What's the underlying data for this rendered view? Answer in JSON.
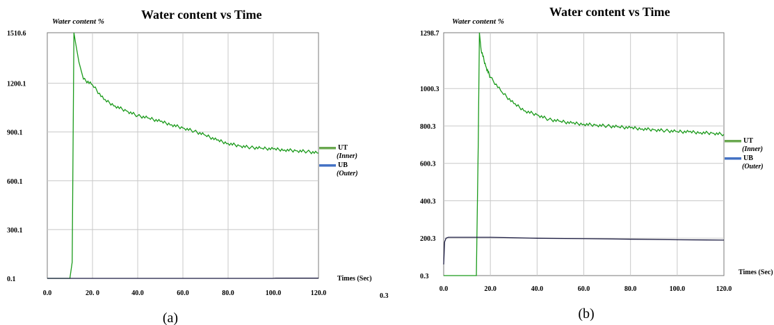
{
  "chart_data": [
    {
      "type": "line",
      "caption": "(a)",
      "title": "Water content vs Time",
      "ylabel": "Water content %",
      "xlabel": "Times (Sec)",
      "xlim": [
        0,
        120
      ],
      "ylim": [
        0.1,
        1510.6
      ],
      "x_ticks": [
        "0.0",
        "20. 0",
        "40.0",
        "60.0",
        "80.0",
        "100.0",
        "120.0"
      ],
      "x_tick_values": [
        0,
        20,
        40,
        60,
        80,
        100,
        120
      ],
      "y_ticks": [
        "0.1",
        "300.1",
        "600.1",
        "900.1",
        "1200.1",
        "1510.6"
      ],
      "y_tick_values": [
        0.1,
        300.1,
        600.1,
        900.1,
        1200.1,
        1510.6
      ],
      "extra_label": "0.3",
      "grid": true,
      "legend_position": "right",
      "legend": [
        {
          "name": "UT",
          "sub": "(Inner)",
          "color": "#6aa84f"
        },
        {
          "name": "UB",
          "sub": "(Outer)",
          "color": "#4472c4"
        }
      ],
      "series": [
        {
          "name": "UT",
          "color": "#1a9a1a",
          "x": [
            0,
            10,
            11,
            11.8,
            12.5,
            14,
            16,
            20,
            25,
            30,
            35,
            40,
            45,
            50,
            55,
            60,
            65,
            70,
            75,
            80,
            85,
            90,
            95,
            100,
            105,
            110,
            115,
            120
          ],
          "y": [
            0.1,
            0.1,
            100,
            1510.6,
            1450,
            1330,
            1225,
            1190,
            1100,
            1060,
            1030,
            1000,
            985,
            965,
            945,
            925,
            905,
            880,
            850,
            830,
            815,
            805,
            800,
            795,
            790,
            785,
            780,
            770
          ]
        },
        {
          "name": "UB",
          "color": "#1a1a40",
          "x": [
            0,
            100,
            101,
            120
          ],
          "y": [
            0.1,
            0.1,
            2,
            2
          ]
        }
      ]
    },
    {
      "type": "line",
      "caption": "(b)",
      "title": "Water content vs Time",
      "ylabel": "Water content %",
      "xlabel": "Times (Sec)",
      "xlim": [
        0,
        120
      ],
      "ylim": [
        0.3,
        1298.7
      ],
      "x_ticks": [
        "0.0",
        "20.0",
        "40.0",
        "60.0",
        "80.0",
        "100.0",
        "120.0"
      ],
      "x_tick_values": [
        0,
        20,
        40,
        60,
        80,
        100,
        120
      ],
      "y_ticks": [
        "0.3",
        "200.3",
        "400.3",
        "600.3",
        "800.3",
        "1000.3",
        "1298.7"
      ],
      "y_tick_values": [
        0.3,
        200.3,
        400.3,
        600.3,
        800.3,
        1000.3,
        1298.7
      ],
      "grid": true,
      "legend_position": "right",
      "legend": [
        {
          "name": "UT",
          "sub": "(Inner)",
          "color": "#6aa84f"
        },
        {
          "name": "UB",
          "sub": "(Outer)",
          "color": "#4472c4"
        }
      ],
      "series": [
        {
          "name": "UT",
          "color": "#1a9a1a",
          "x": [
            0,
            14,
            14.8,
            15.3,
            16,
            18,
            20,
            25,
            30,
            35,
            40,
            45,
            50,
            55,
            60,
            65,
            70,
            75,
            80,
            85,
            90,
            95,
            100,
            105,
            110,
            115,
            120
          ],
          "y": [
            0.3,
            0.3,
            700,
            1298.7,
            1210,
            1120,
            1060,
            980,
            920,
            880,
            860,
            835,
            825,
            815,
            810,
            805,
            800,
            795,
            790,
            785,
            780,
            775,
            770,
            768,
            765,
            762,
            755
          ]
        },
        {
          "name": "UB",
          "color": "#1a1a40",
          "x": [
            0,
            0.4,
            1,
            2,
            20,
            40,
            60,
            80,
            100,
            120
          ],
          "y": [
            60,
            180,
            200,
            205,
            205,
            200,
            198,
            195,
            192,
            190
          ]
        }
      ]
    }
  ]
}
